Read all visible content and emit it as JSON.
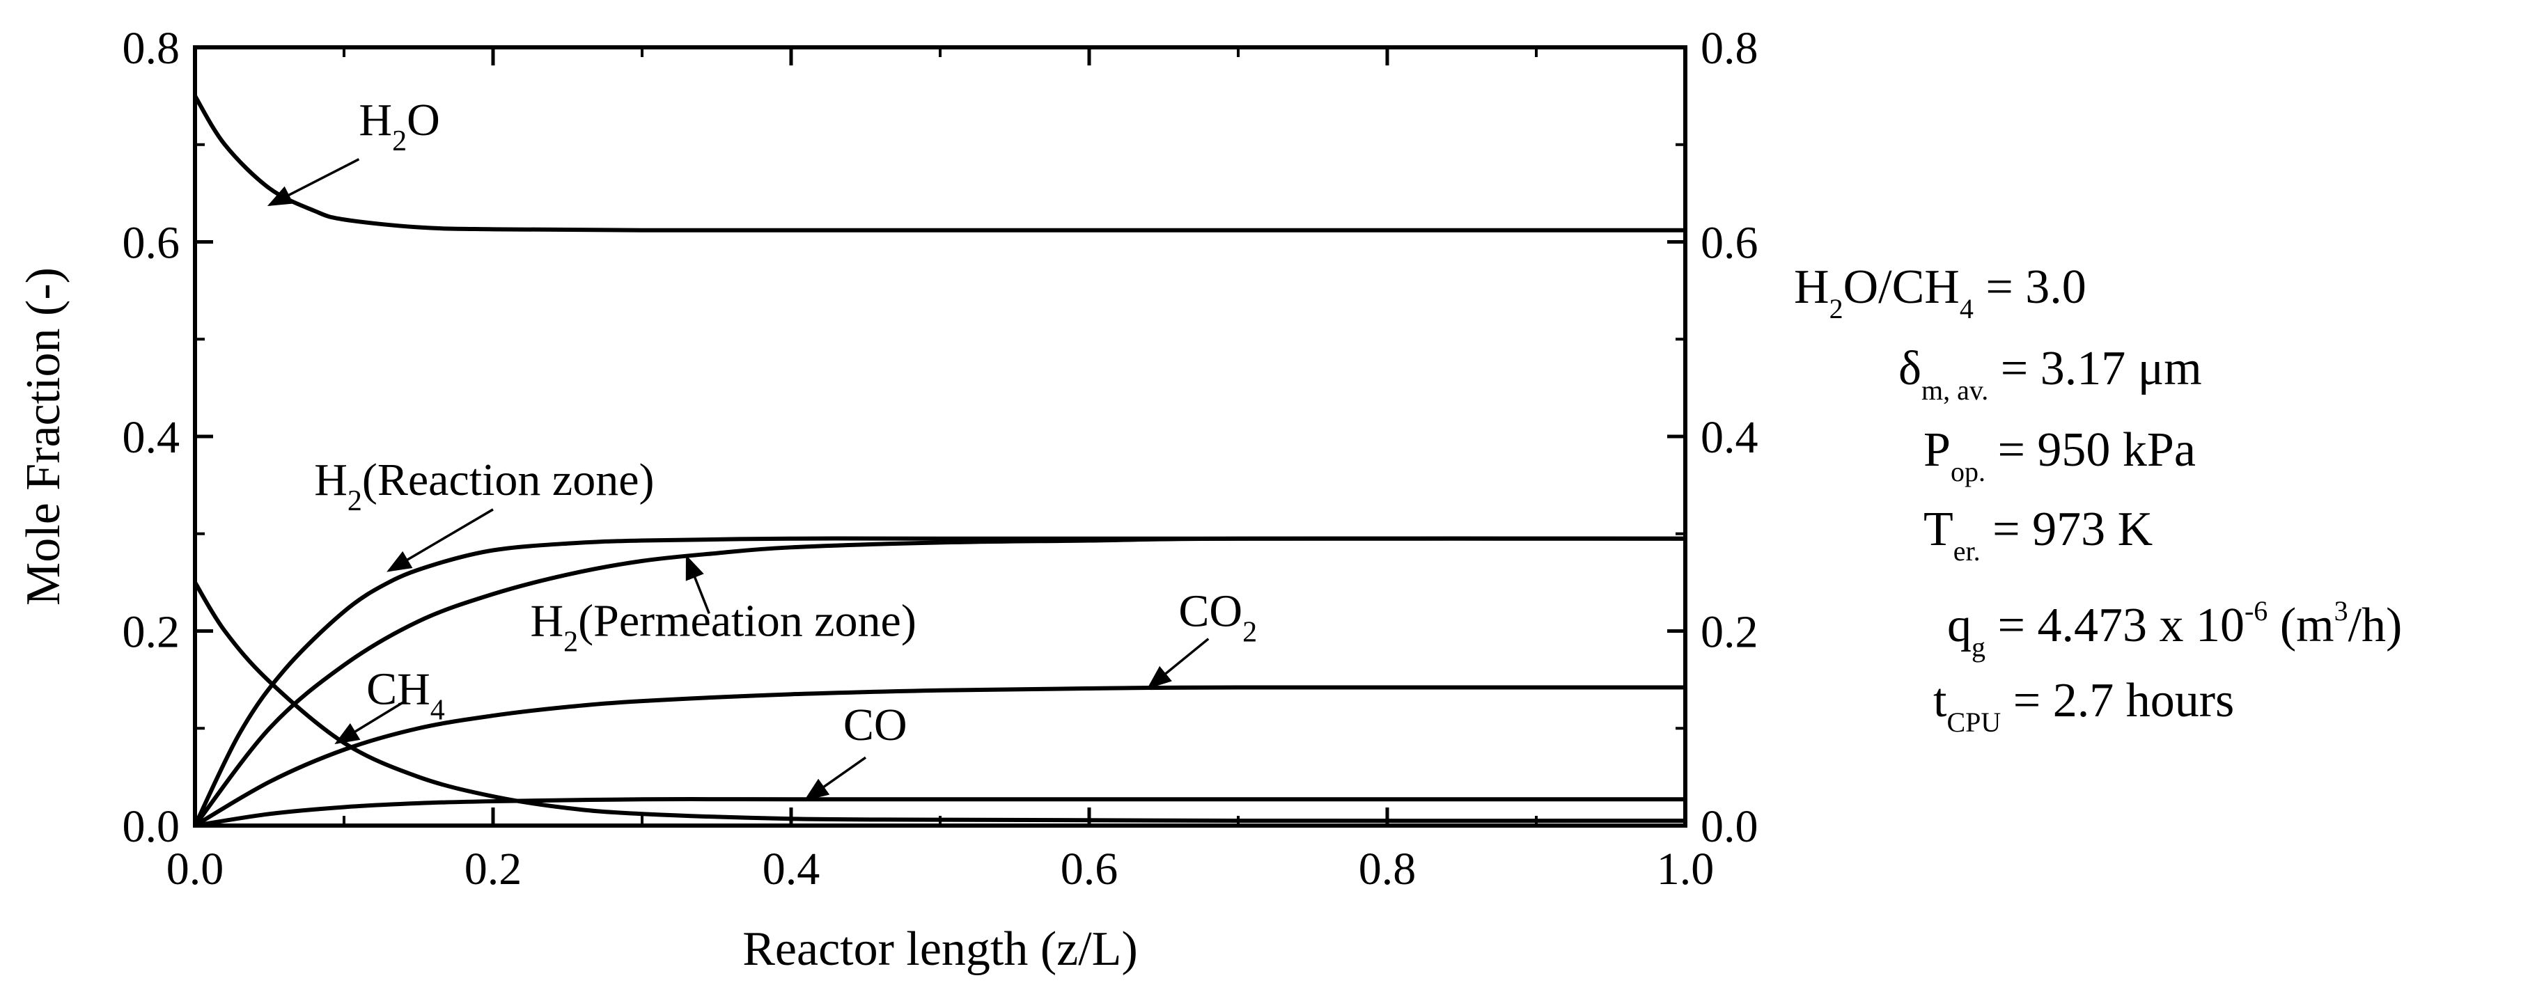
{
  "chart_data": {
    "type": "line",
    "title": "",
    "xlabel": "Reactor length (z/L)",
    "ylabel": "Mole Fraction (-)",
    "xlim": [
      0.0,
      1.0
    ],
    "ylim": [
      0.0,
      0.8
    ],
    "x_ticks": [
      "0.0",
      "0.2",
      "0.4",
      "0.6",
      "0.8",
      "1.0"
    ],
    "y_ticks": [
      "0.0",
      "0.2",
      "0.4",
      "0.6",
      "0.8"
    ],
    "y_ticks_right": [
      "0.0",
      "0.2",
      "0.4",
      "0.6",
      "0.8"
    ],
    "grid": false,
    "series": [
      {
        "name": "H2O",
        "label_main": "H",
        "label_sub": "2",
        "label_tail": "O",
        "x": [
          0,
          0.02,
          0.05,
          0.08,
          0.1,
          0.15,
          0.2,
          0.3,
          0.5,
          0.7,
          1.0
        ],
        "y": [
          0.75,
          0.7,
          0.655,
          0.632,
          0.623,
          0.615,
          0.613,
          0.612,
          0.612,
          0.612,
          0.612
        ]
      },
      {
        "name": "H2(Reaction zone)",
        "label_main": "H",
        "label_sub": "2",
        "label_tail": "(Reaction zone)",
        "x": [
          0,
          0.03,
          0.06,
          0.1,
          0.13,
          0.16,
          0.2,
          0.25,
          0.3,
          0.4,
          0.5,
          0.7,
          1.0
        ],
        "y": [
          0.0,
          0.095,
          0.16,
          0.22,
          0.25,
          0.268,
          0.283,
          0.29,
          0.293,
          0.295,
          0.295,
          0.295,
          0.295
        ]
      },
      {
        "name": "H2(Permeation zone)",
        "label_main": "H",
        "label_sub": "2",
        "label_tail": "(Permeation zone)",
        "x": [
          0,
          0.05,
          0.1,
          0.15,
          0.2,
          0.25,
          0.3,
          0.35,
          0.4,
          0.5,
          0.6,
          0.7,
          1.0
        ],
        "y": [
          0.0,
          0.1,
          0.165,
          0.21,
          0.238,
          0.258,
          0.272,
          0.28,
          0.286,
          0.291,
          0.293,
          0.295,
          0.295
        ]
      },
      {
        "name": "CO2",
        "label_main": "CO",
        "label_sub": "2",
        "label_tail": "",
        "x": [
          0,
          0.05,
          0.1,
          0.15,
          0.2,
          0.25,
          0.3,
          0.4,
          0.5,
          0.6,
          0.7,
          1.0
        ],
        "y": [
          0.0,
          0.045,
          0.078,
          0.1,
          0.113,
          0.122,
          0.128,
          0.135,
          0.139,
          0.141,
          0.142,
          0.142
        ]
      },
      {
        "name": "CH4",
        "label_main": "CH",
        "label_sub": "4",
        "label_tail": "",
        "x": [
          0,
          0.02,
          0.05,
          0.1,
          0.15,
          0.2,
          0.25,
          0.3,
          0.4,
          0.5,
          0.7,
          1.0
        ],
        "y": [
          0.25,
          0.2,
          0.148,
          0.085,
          0.05,
          0.03,
          0.018,
          0.012,
          0.007,
          0.006,
          0.005,
          0.005
        ]
      },
      {
        "name": "CO",
        "label_main": "CO",
        "label_sub": "",
        "label_tail": "",
        "x": [
          0,
          0.05,
          0.1,
          0.15,
          0.2,
          0.3,
          0.4,
          0.5,
          0.7,
          1.0
        ],
        "y": [
          0.0,
          0.012,
          0.019,
          0.023,
          0.025,
          0.027,
          0.027,
          0.027,
          0.027,
          0.027
        ]
      }
    ],
    "annotations": [
      {
        "name": "H2O",
        "text_x": 0.11,
        "text_y": 0.71,
        "arrow_from": [
          0.11,
          0.685
        ],
        "arrow_to": [
          0.05,
          0.638
        ]
      },
      {
        "name": "H2(Reaction zone)",
        "text_x": 0.08,
        "text_y": 0.34,
        "arrow_from": [
          0.2,
          0.325
        ],
        "arrow_to": [
          0.13,
          0.262
        ]
      },
      {
        "name": "H2(Permeation zone)",
        "text_x": 0.225,
        "text_y": 0.195,
        "arrow_from": [
          0.345,
          0.218
        ],
        "arrow_to": [
          0.33,
          0.276
        ]
      },
      {
        "name": "CO2",
        "text_x": 0.66,
        "text_y": 0.205,
        "arrow_from": [
          0.68,
          0.192
        ],
        "arrow_to": [
          0.64,
          0.142
        ]
      },
      {
        "name": "CH4",
        "text_x": 0.115,
        "text_y": 0.125,
        "arrow_from": [
          0.14,
          0.127
        ],
        "arrow_to": [
          0.095,
          0.085
        ]
      },
      {
        "name": "CO",
        "text_x": 0.435,
        "text_y": 0.088,
        "arrow_from": [
          0.45,
          0.07
        ],
        "arrow_to": [
          0.41,
          0.027
        ]
      }
    ]
  },
  "side_annotations": {
    "ratio": {
      "main": "H",
      "sub1": "2",
      "mid": "O/CH",
      "sub2": "4",
      "tail": " = 3.0"
    },
    "thickness": {
      "main": "δ",
      "sub": "m, av.",
      "tail": " = 3.17 μm"
    },
    "pressure": {
      "main": "P",
      "sub": "op.",
      "tail": " = 950 kPa"
    },
    "temperature": {
      "main": "T",
      "sub": "er.",
      "tail": " = 973 K"
    },
    "flow": {
      "main": "q",
      "sub": "g",
      "mid": " = 4.473 x 10",
      "sup1": "-6",
      "mid2": " (m",
      "sup2": "3",
      "tail": "/h)"
    },
    "cpu_time": {
      "main": "t",
      "sub": "CPU",
      "tail": " = 2.7 hours"
    }
  }
}
